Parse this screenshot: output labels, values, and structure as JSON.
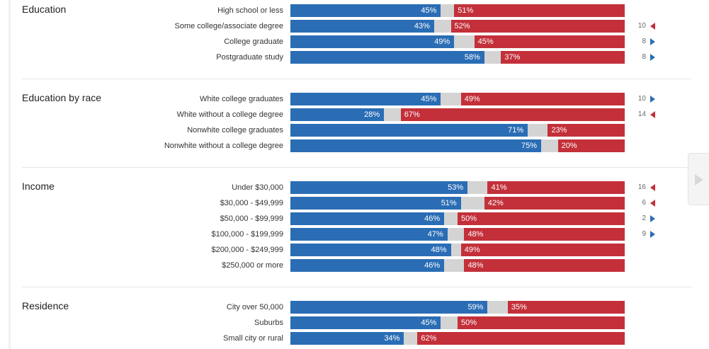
{
  "chart_data": {
    "type": "bar",
    "orientation": "horizontal-stacked",
    "colors": {
      "dem": "#2a6db5",
      "neutral": "#d4d4d4",
      "rep": "#c3303a"
    },
    "sections": [
      {
        "title": "Education",
        "rows": [
          {
            "label": "High school or less",
            "dem": 45,
            "rep": 51,
            "shift": null,
            "shift_dir": null
          },
          {
            "label": "Some college/associate degree",
            "dem": 43,
            "rep": 52,
            "shift": 10,
            "shift_dir": "rep"
          },
          {
            "label": "College graduate",
            "dem": 49,
            "rep": 45,
            "shift": 8,
            "shift_dir": "dem"
          },
          {
            "label": "Postgraduate study",
            "dem": 58,
            "rep": 37,
            "shift": 8,
            "shift_dir": "dem"
          }
        ]
      },
      {
        "title": "Education by race",
        "rows": [
          {
            "label": "White college graduates",
            "dem": 45,
            "rep": 49,
            "shift": 10,
            "shift_dir": "dem"
          },
          {
            "label": "White without a college degree",
            "dem": 28,
            "rep": 67,
            "shift": 14,
            "shift_dir": "rep"
          },
          {
            "label": "Nonwhite college graduates",
            "dem": 71,
            "rep": 23,
            "shift": null,
            "shift_dir": null
          },
          {
            "label": "Nonwhite without a college degree",
            "dem": 75,
            "rep": 20,
            "shift": null,
            "shift_dir": null
          }
        ]
      },
      {
        "title": "Income",
        "rows": [
          {
            "label": "Under $30,000",
            "dem": 53,
            "rep": 41,
            "shift": 16,
            "shift_dir": "rep"
          },
          {
            "label": "$30,000 - $49,999",
            "dem": 51,
            "rep": 42,
            "shift": 6,
            "shift_dir": "rep"
          },
          {
            "label": "$50,000 - $99,999",
            "dem": 46,
            "rep": 50,
            "shift": 2,
            "shift_dir": "dem"
          },
          {
            "label": "$100,000 - $199,999",
            "dem": 47,
            "rep": 48,
            "shift": 9,
            "shift_dir": "dem"
          },
          {
            "label": "$200,000 - $249,999",
            "dem": 48,
            "rep": 49,
            "shift": null,
            "shift_dir": null
          },
          {
            "label": "$250,000 or more",
            "dem": 46,
            "rep": 48,
            "shift": null,
            "shift_dir": null
          }
        ]
      },
      {
        "title": "Residence",
        "rows": [
          {
            "label": "City over 50,000",
            "dem": 59,
            "rep": 35,
            "shift": null,
            "shift_dir": null
          },
          {
            "label": "Suburbs",
            "dem": 45,
            "rep": 50,
            "shift": null,
            "shift_dir": null
          },
          {
            "label": "Small city or rural",
            "dem": 34,
            "rep": 62,
            "shift": null,
            "shift_dir": null
          }
        ]
      }
    ]
  },
  "icons": {
    "next": "chevron-right-icon",
    "shift_dem": "triangle-right-icon",
    "shift_rep": "triangle-left-icon"
  }
}
